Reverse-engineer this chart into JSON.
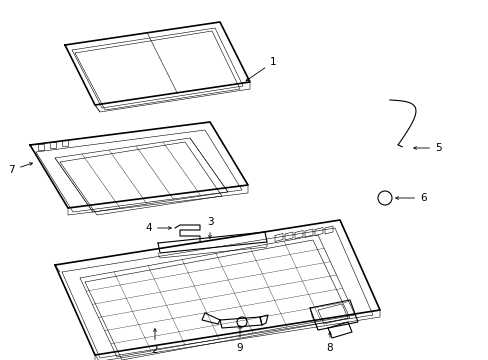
{
  "background_color": "#ffffff",
  "line_color": "#000000",
  "lw_thin": 0.4,
  "lw_med": 0.8,
  "lw_thick": 1.2,
  "font_size": 7.5,
  "fig_w": 4.89,
  "fig_h": 3.6,
  "dpi": 100
}
